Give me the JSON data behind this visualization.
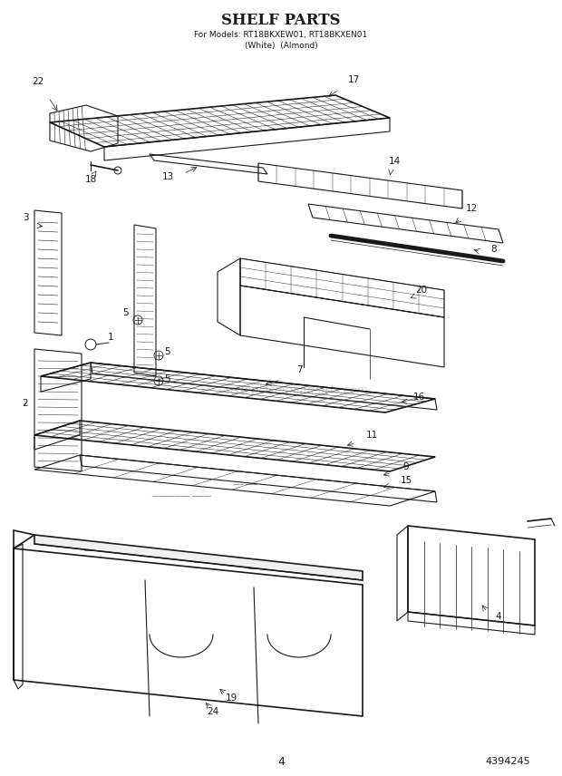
{
  "title": "SHELF PARTS",
  "subtitle1": "For Models: RT18BKXEW01, RT18BKXEN01",
  "subtitle2": "(White)  (Almond)",
  "page_number": "4",
  "doc_number": "4394245",
  "background_color": "#ffffff",
  "line_color": "#1a1a1a",
  "watermark": "eReplacementParts.com",
  "lw_heavy": 1.2,
  "lw_medium": 0.8,
  "lw_light": 0.45,
  "lw_grid": 0.35
}
